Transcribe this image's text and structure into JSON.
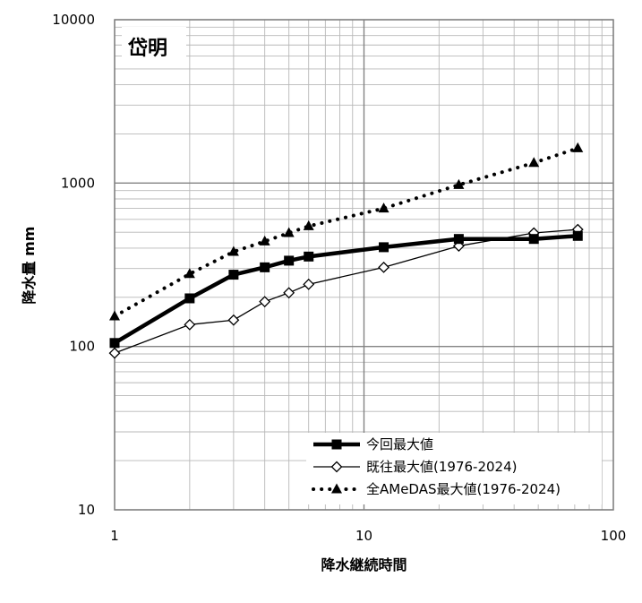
{
  "chart_data": {
    "type": "line",
    "title": "岱明",
    "xlabel": "降水継続時間",
    "ylabel": "降水量 mm",
    "xscale": "log",
    "yscale": "log",
    "xlim": [
      1,
      100
    ],
    "ylim": [
      10,
      10000
    ],
    "x_ticks": [
      "1",
      "10",
      "100"
    ],
    "y_ticks": [
      "10",
      "100",
      "1000",
      "10000"
    ],
    "grid": true,
    "legend_position": "bottom-right",
    "series": [
      {
        "name": "今回最大値",
        "style": "thick-solid",
        "marker": "square",
        "color": "#000000",
        "x": [
          1,
          2,
          3,
          4,
          5,
          6,
          12,
          24,
          48,
          72
        ],
        "y": [
          105,
          197,
          275,
          305,
          335,
          355,
          405,
          455,
          455,
          475
        ]
      },
      {
        "name": "既往最大値(1976-2024)",
        "style": "thin-solid",
        "marker": "diamond-open",
        "color": "#000000",
        "x": [
          1,
          2,
          3,
          4,
          5,
          6,
          12,
          24,
          48,
          72
        ],
        "y": [
          91,
          136,
          145,
          188,
          213,
          240,
          305,
          412,
          495,
          520
        ]
      },
      {
        "name": "全AMeDAS最大値(1976-2024)",
        "style": "dotted",
        "marker": "triangle",
        "color": "#000000",
        "x": [
          1,
          2,
          3,
          4,
          5,
          6,
          12,
          24,
          48,
          72
        ],
        "y": [
          153,
          278,
          380,
          440,
          495,
          545,
          700,
          975,
          1330,
          1635
        ]
      }
    ]
  }
}
